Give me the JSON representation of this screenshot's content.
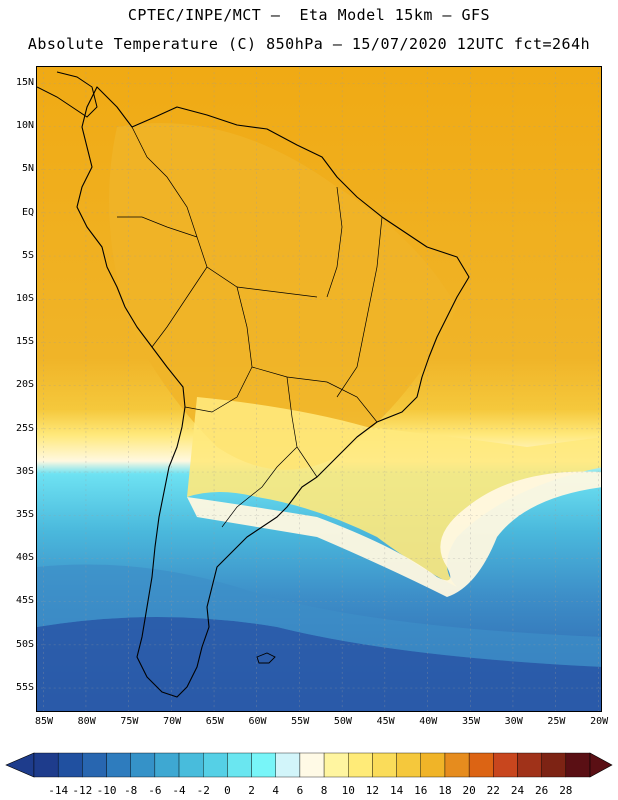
{
  "title_line1": "CPTEC/INPE/MCT –  Eta Model 15km – GFS",
  "title_line2": "Absolute Temperature (C) 850hPa – 15/07/2020 12UTC fct=264h",
  "lat_labels": [
    "15N",
    "10N",
    "5N",
    "EQ",
    "5S",
    "10S",
    "15S",
    "20S",
    "25S",
    "30S",
    "35S",
    "40S",
    "45S",
    "50S",
    "55S"
  ],
  "lon_labels": [
    "85W",
    "80W",
    "75W",
    "70W",
    "65W",
    "60W",
    "55W",
    "50W",
    "45W",
    "40W",
    "35W",
    "30W",
    "25W",
    "20W"
  ],
  "legend": {
    "labels": [
      "-14",
      "-12",
      "-10",
      "-8",
      "-6",
      "-4",
      "-2",
      "0",
      "2",
      "4",
      "6",
      "8",
      "10",
      "12",
      "14",
      "16",
      "18",
      "20",
      "22",
      "24",
      "26",
      "28"
    ],
    "colors": [
      "#1e3c8c",
      "#2050a0",
      "#2866b0",
      "#2e7cbe",
      "#3592c8",
      "#3ea8d2",
      "#48bcdc",
      "#55d0e6",
      "#6ae6f0",
      "#78f5f8",
      "#d2f5fa",
      "#fffae6",
      "#fff5a0",
      "#ffeb78",
      "#fadc5a",
      "#f5c83c",
      "#f0b428",
      "#e68c1e",
      "#dc6414",
      "#c8461e",
      "#a03219",
      "#7d2314",
      "#5a0f14"
    ]
  },
  "map_colors": {
    "ocean_deep": "#2a5aa8",
    "ocean_mid": "#3d8ec8",
    "ocean_cyan": "#4ab8dc",
    "ocean_light": "#6ee2f2",
    "pale_band": "#fff8e0",
    "yellow": "#ffe97c",
    "warm": "#f0bc3c",
    "tropical": "#f0aa14"
  }
}
